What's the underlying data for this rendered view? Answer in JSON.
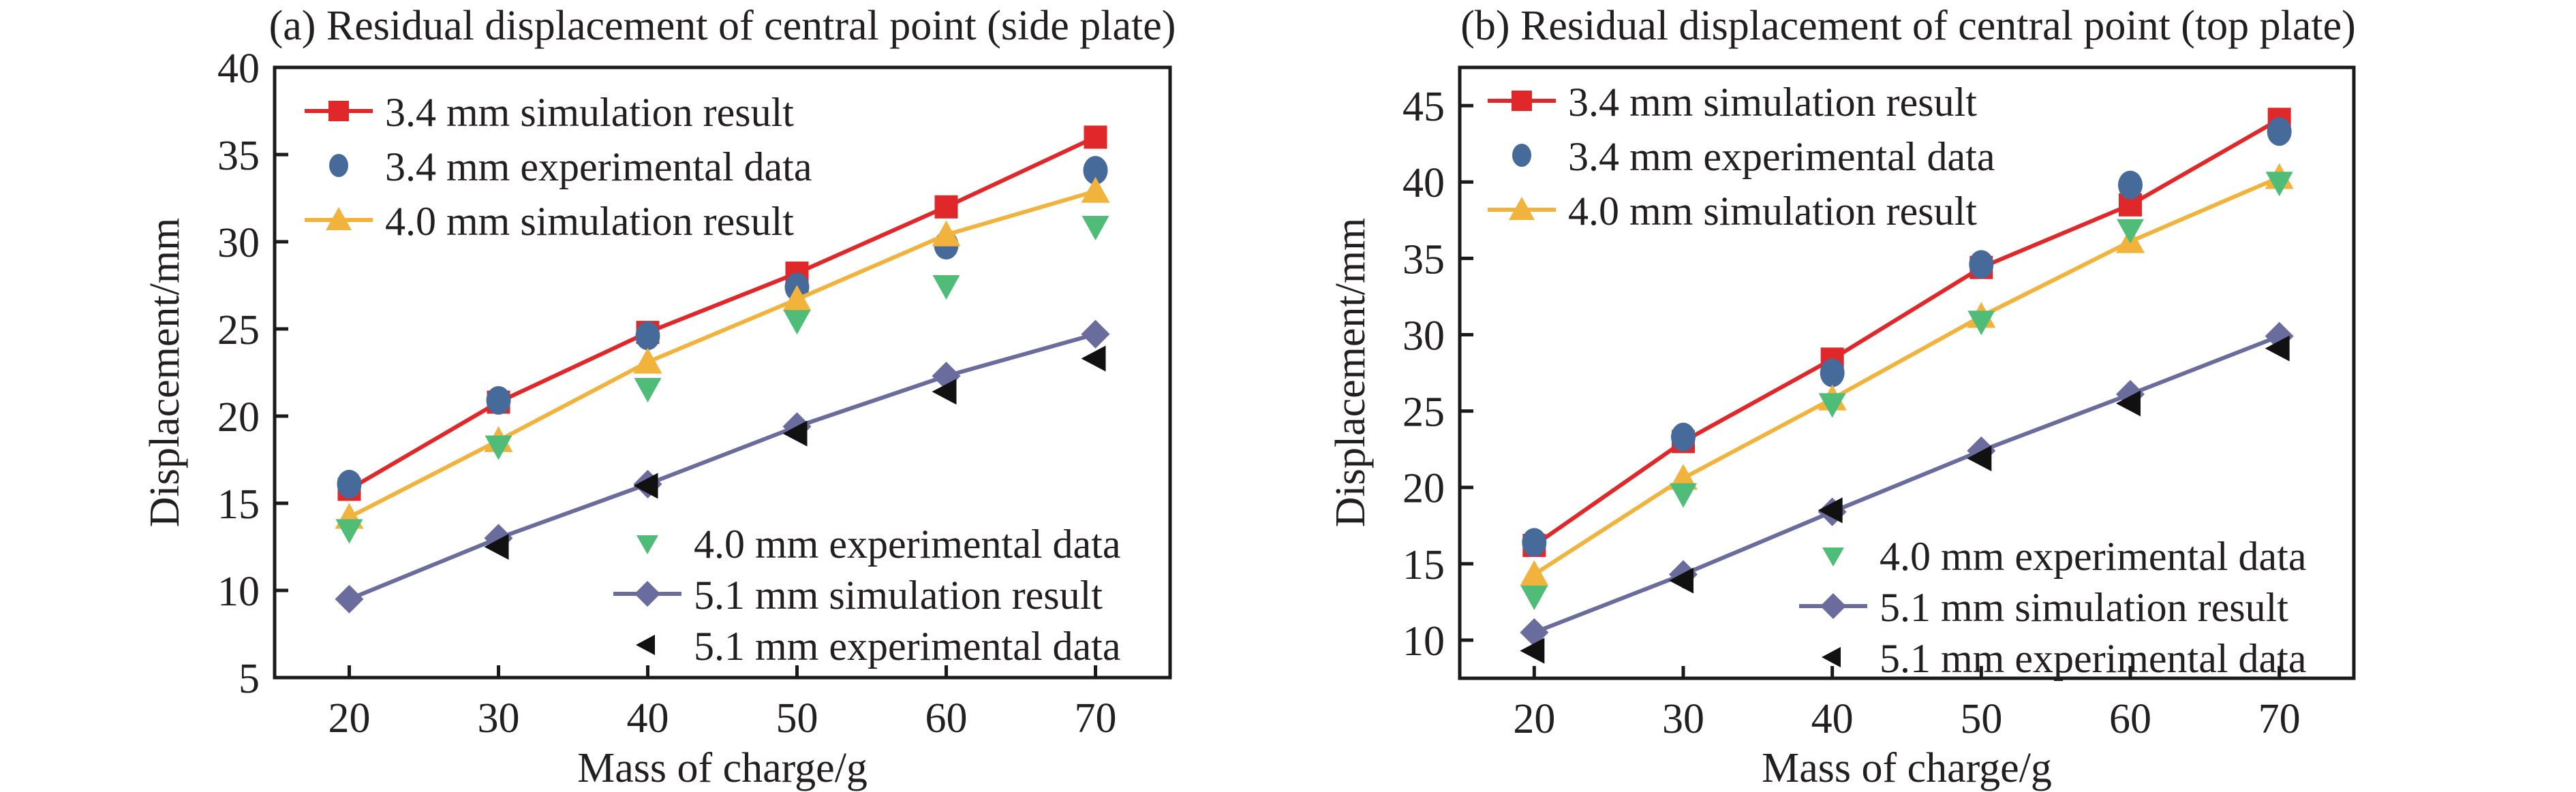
{
  "chart_data": [
    {
      "type": "line",
      "title": "(a) Residual displacement of central point (side plate)",
      "xlabel": "Mass of charge/g",
      "ylabel": "Displacement/mm",
      "x": [
        20,
        30,
        40,
        50,
        60,
        70
      ],
      "xticks": [
        20,
        30,
        40,
        50,
        60,
        70
      ],
      "yticks": [
        5,
        10,
        15,
        20,
        25,
        30,
        35,
        40
      ],
      "xlim": [
        15,
        75
      ],
      "ylim": [
        5,
        40
      ],
      "grid": false,
      "legend": [
        {
          "placement": "top-left",
          "entries": [
            0,
            1,
            2
          ]
        },
        {
          "placement": "bottom-right",
          "entries": [
            3,
            4,
            5
          ]
        }
      ],
      "series": [
        {
          "name": "3.4 mm simulation result",
          "kind": "line",
          "marker": "square",
          "color": "#e0282b",
          "values": [
            15.8,
            20.8,
            24.8,
            28.2,
            32.0,
            36.0
          ]
        },
        {
          "name": "3.4 mm experimental data",
          "kind": "scatter",
          "marker": "circle",
          "color": "#466b9a",
          "values": [
            16.1,
            20.9,
            24.6,
            27.4,
            29.8,
            34.1
          ]
        },
        {
          "name": "4.0 mm simulation result",
          "kind": "line",
          "marker": "triangle-up",
          "color": "#f2b33d",
          "values": [
            14.2,
            18.6,
            23.1,
            26.7,
            30.4,
            32.9
          ]
        },
        {
          "name": "4.0 mm experimental data",
          "kind": "scatter",
          "marker": "triangle-down",
          "color": "#4fbd78",
          "values": [
            13.5,
            18.3,
            21.6,
            25.5,
            27.5,
            30.9
          ]
        },
        {
          "name": "5.1 mm simulation result",
          "kind": "line",
          "marker": "diamond",
          "color": "#6b6c9e",
          "values": [
            9.5,
            13.0,
            16.1,
            19.4,
            22.3,
            24.7
          ]
        },
        {
          "name": "5.1 mm experimental data",
          "kind": "scatter",
          "marker": "triangle-left",
          "color": "#111111",
          "values": [
            null,
            12.5,
            16.0,
            19.0,
            21.4,
            23.3
          ]
        }
      ]
    },
    {
      "type": "line",
      "title": "(b) Residual displacement of central point (top plate)",
      "xlabel": "Mass of charge/g",
      "ylabel": "Displacement/mm",
      "x": [
        20,
        30,
        40,
        50,
        60,
        70
      ],
      "xticks": [
        20,
        30,
        40,
        50,
        60,
        70
      ],
      "yticks": [
        10,
        15,
        20,
        25,
        30,
        35,
        40,
        45
      ],
      "xlim": [
        15,
        75
      ],
      "ylim": [
        7.5,
        47.5
      ],
      "grid": false,
      "legend": [
        {
          "placement": "top-left",
          "entries": [
            0,
            1,
            2
          ]
        },
        {
          "placement": "bottom-right",
          "entries": [
            3,
            4,
            5
          ]
        }
      ],
      "series": [
        {
          "name": "3.4 mm simulation result",
          "kind": "line",
          "marker": "square",
          "color": "#e0282b",
          "values": [
            16.2,
            23.0,
            28.4,
            34.4,
            38.5,
            44.1
          ]
        },
        {
          "name": "3.4 mm experimental data",
          "kind": "scatter",
          "marker": "circle",
          "color": "#466b9a",
          "values": [
            16.4,
            23.3,
            27.5,
            34.6,
            39.8,
            43.3
          ]
        },
        {
          "name": "4.0 mm simulation result",
          "kind": "line",
          "marker": "triangle-up",
          "color": "#f2b33d",
          "values": [
            14.3,
            20.6,
            25.8,
            31.2,
            36.1,
            40.3
          ]
        },
        {
          "name": "4.0 mm experimental data",
          "kind": "scatter",
          "marker": "triangle-down",
          "color": "#4fbd78",
          "values": [
            12.9,
            19.6,
            25.5,
            30.9,
            36.9,
            40.0
          ]
        },
        {
          "name": "5.1 mm simulation result",
          "kind": "line",
          "marker": "diamond",
          "color": "#6b6c9e",
          "values": [
            10.5,
            14.3,
            18.4,
            22.4,
            26.1,
            29.9
          ]
        },
        {
          "name": "5.1 mm experimental data",
          "kind": "scatter",
          "marker": "triangle-left",
          "color": "#111111",
          "values": [
            9.3,
            13.9,
            18.5,
            21.9,
            25.5,
            29.1
          ]
        }
      ]
    }
  ]
}
